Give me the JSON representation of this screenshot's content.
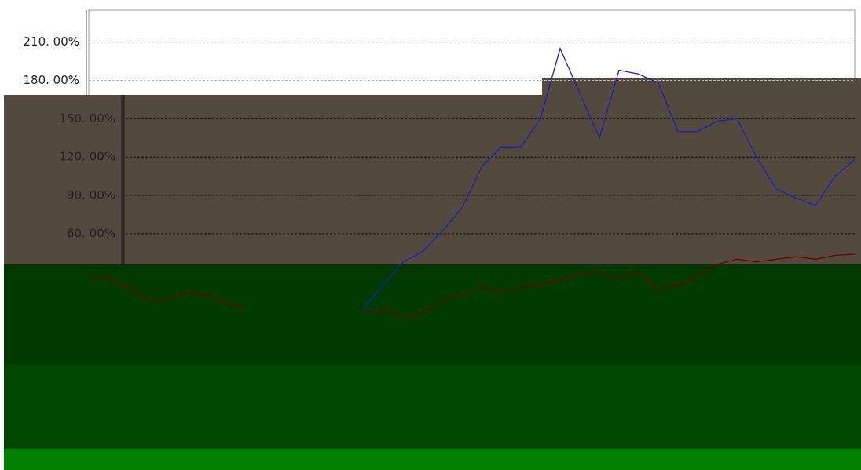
{
  "chart_data": {
    "type": "line",
    "ylim": [
      -125,
      235
    ],
    "yticks": [
      {
        "value": 210,
        "label": "210. 00%"
      },
      {
        "value": 180,
        "label": "180. 00%"
      },
      {
        "value": 150,
        "label": "150. 00%"
      },
      {
        "value": 120,
        "label": "120. 00%"
      },
      {
        "value": 90,
        "label": "90. 00%"
      },
      {
        "value": 60,
        "label": "60. 00%"
      }
    ],
    "grid": true,
    "series": [
      {
        "color": "#1f1fb0",
        "values": [
          null,
          null,
          null,
          null,
          null,
          null,
          null,
          null,
          null,
          null,
          null,
          null,
          null,
          null,
          2,
          20,
          38,
          46,
          62,
          80,
          112,
          128,
          128,
          150,
          205,
          170,
          135,
          188,
          185,
          178,
          140,
          140,
          148,
          150,
          120,
          95,
          88,
          82,
          105,
          118
        ]
      },
      {
        "color": "#6b0000",
        "values": [
          26,
          25,
          18,
          8,
          8,
          14,
          12,
          6,
          2,
          null,
          null,
          null,
          null,
          null,
          -2,
          0,
          -5,
          -2,
          8,
          12,
          18,
          14,
          18,
          20,
          24,
          28,
          30,
          24,
          30,
          16,
          20,
          26,
          36,
          40,
          38,
          40,
          42,
          40,
          43,
          44
        ]
      }
    ]
  }
}
